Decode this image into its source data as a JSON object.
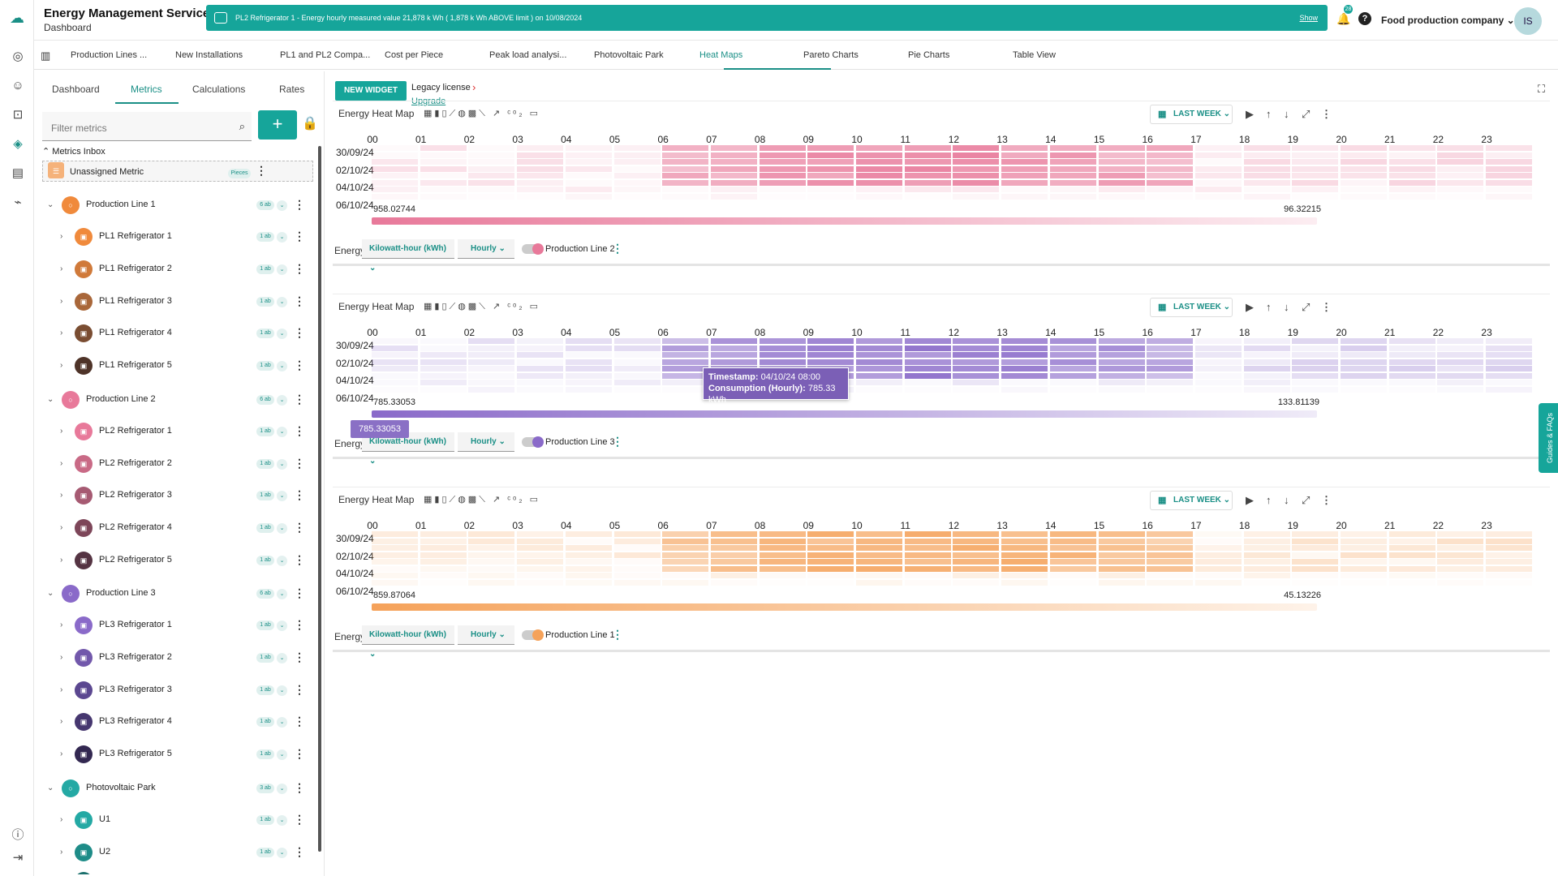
{
  "app": {
    "title": "Energy Management Service",
    "subtitle": "Dashboard"
  },
  "banner": {
    "text": "PL2 Refrigerator 1 - Energy hourly measured value 21,878 k Wh ( 1,878 k Wh ABOVE limit ) on 10/08/2024",
    "show_label": "Show"
  },
  "header": {
    "notifications": "28",
    "help": "?",
    "company": "Food production company",
    "avatar": "IS"
  },
  "tabs": [
    "Production Lines ...",
    "New Installations",
    "PL1 and PL2 Compa...",
    "Cost per Piece",
    "Peak load analysi...",
    "Photovoltaic Park",
    "Heat Maps",
    "Pareto Charts",
    "Pie Charts",
    "Table View"
  ],
  "active_tab": "Heat Maps",
  "sidebar": {
    "tabs": [
      "Dashboard",
      "Metrics",
      "Calculations",
      "Rates"
    ],
    "active": "Metrics",
    "filter_placeholder": "Filter metrics",
    "add_label": "+",
    "inbox_label": "Metrics Inbox",
    "unassigned": {
      "label": "Unassigned Metric",
      "badge": "Pieces"
    },
    "tree": [
      {
        "label": "Production Line 1",
        "level": 0,
        "badge": "6 ab",
        "color": "#f08a3c",
        "expanded": true
      },
      {
        "label": "PL1 Refrigerator 1",
        "level": 1,
        "badge": "1 ab",
        "color": "#f08a3c"
      },
      {
        "label": "PL1 Refrigerator 2",
        "level": 1,
        "badge": "1 ab",
        "color": "#d07a3a"
      },
      {
        "label": "PL1 Refrigerator 3",
        "level": 1,
        "badge": "1 ab",
        "color": "#a9673a"
      },
      {
        "label": "PL1 Refrigerator 4",
        "level": 1,
        "badge": "1 ab",
        "color": "#7a4d32"
      },
      {
        "label": "PL1 Refrigerator 5",
        "level": 1,
        "badge": "1 ab",
        "color": "#4e3328"
      },
      {
        "label": "Production Line 2",
        "level": 0,
        "badge": "6 ab",
        "color": "#e8799a",
        "expanded": true
      },
      {
        "label": "PL2 Refrigerator 1",
        "level": 1,
        "badge": "1 ab",
        "color": "#e8799a"
      },
      {
        "label": "PL2 Refrigerator 2",
        "level": 1,
        "badge": "1 ab",
        "color": "#c96a86"
      },
      {
        "label": "PL2 Refrigerator 3",
        "level": 1,
        "badge": "1 ab",
        "color": "#a65a72"
      },
      {
        "label": "PL2 Refrigerator 4",
        "level": 1,
        "badge": "1 ab",
        "color": "#7d4659"
      },
      {
        "label": "PL2 Refrigerator 5",
        "level": 1,
        "badge": "1 ab",
        "color": "#553443"
      },
      {
        "label": "Production Line 3",
        "level": 0,
        "badge": "6 ab",
        "color": "#8a6ac9",
        "expanded": true
      },
      {
        "label": "PL3 Refrigerator 1",
        "level": 1,
        "badge": "1 ab",
        "color": "#8a6ac9"
      },
      {
        "label": "PL3 Refrigerator 2",
        "level": 1,
        "badge": "1 ab",
        "color": "#7258ab"
      },
      {
        "label": "PL3 Refrigerator 3",
        "level": 1,
        "badge": "1 ab",
        "color": "#5b4790"
      },
      {
        "label": "PL3 Refrigerator 4",
        "level": 1,
        "badge": "1 ab",
        "color": "#46376f"
      },
      {
        "label": "PL3 Refrigerator 5",
        "level": 1,
        "badge": "1 ab",
        "color": "#332851"
      },
      {
        "label": "Photovoltaic Park",
        "level": 0,
        "badge": "3 ab",
        "color": "#24a9a4",
        "expanded": true
      },
      {
        "label": "U1",
        "level": 1,
        "badge": "1 ab",
        "color": "#24a9a4"
      },
      {
        "label": "U2",
        "level": 1,
        "badge": "1 ab",
        "color": "#1e8c88"
      },
      {
        "label": "U3",
        "level": 1,
        "badge": "1 ab",
        "color": "#1a6f6c"
      }
    ]
  },
  "toolbar": {
    "new_widget": "NEW WIDGET",
    "legacy": "Legacy license",
    "upgrade": "Upgrade"
  },
  "widgets": [
    {
      "title": "Energy Heat Map",
      "range": "LAST WEEK",
      "max": "958.02744",
      "min": "96.32215",
      "energy_label": "Energy",
      "unit": "Kilowatt-hour (kWh)",
      "interval": "Hourly",
      "line": "Production Line 2",
      "color": "#e8799a"
    },
    {
      "title": "Energy Heat Map",
      "range": "LAST WEEK",
      "max": "785.33053",
      "min": "133.81139",
      "energy_label": "Energy",
      "unit": "Kilowatt-hour (kWh)",
      "interval": "Hourly",
      "line": "Production Line 3",
      "color": "#8a6ac9"
    },
    {
      "title": "Energy Heat Map",
      "range": "LAST WEEK",
      "max": "859.87064",
      "min": "45.13226",
      "energy_label": "Energy",
      "unit": "Kilowatt-hour (kWh)",
      "interval": "Hourly",
      "line": "Production Line 1",
      "color": "#f5a25a"
    }
  ],
  "heatmap_axes": {
    "hours": [
      "00",
      "01",
      "02",
      "03",
      "04",
      "05",
      "06",
      "07",
      "08",
      "09",
      "10",
      "11",
      "12",
      "13",
      "14",
      "15",
      "16",
      "17",
      "18",
      "19",
      "20",
      "21",
      "22",
      "23"
    ],
    "dates": [
      "30/09/24",
      "02/10/24",
      "04/10/24",
      "06/10/24"
    ]
  },
  "tooltip": {
    "timestamp_label": "Timestamp:",
    "timestamp": "04/10/24 08:00",
    "consumption_label": "Consumption (Hourly):",
    "consumption": "785.33 kWh",
    "marker": "785.33053"
  },
  "guides_label": "Guides & FAQs"
}
